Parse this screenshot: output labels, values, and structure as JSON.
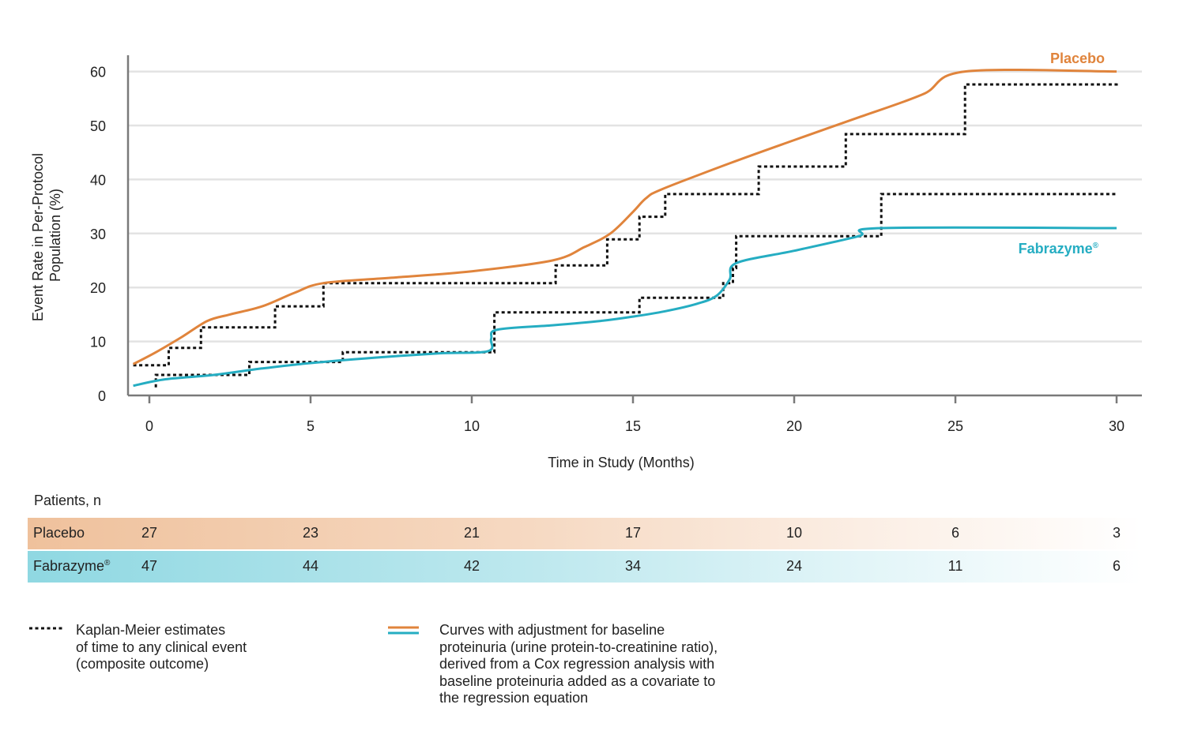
{
  "chart_data": {
    "type": "line",
    "xlabel": "Time in Study (Months)",
    "ylabel_lines": [
      "Event Rate in Per-Protocol",
      "Population (%)"
    ],
    "xlim": [
      -0.6,
      30.9
    ],
    "ylim": [
      0,
      63
    ],
    "x_ticks": [
      0,
      5,
      10,
      15,
      20,
      25,
      30
    ],
    "y_ticks": [
      0,
      10,
      20,
      30,
      40,
      50,
      60
    ],
    "grid": true,
    "series": [
      {
        "name": "Placebo",
        "style": "solid",
        "color": "#e0843c",
        "points": [
          [
            -0.5,
            5.8
          ],
          [
            0.2,
            8.0
          ],
          [
            1.0,
            10.8
          ],
          [
            1.8,
            13.8
          ],
          [
            2.5,
            15.0
          ],
          [
            3.5,
            16.5
          ],
          [
            4.5,
            19.0
          ],
          [
            5.4,
            20.8
          ],
          [
            7.5,
            21.8
          ],
          [
            10.0,
            23.0
          ],
          [
            12.5,
            25.0
          ],
          [
            13.5,
            27.5
          ],
          [
            14.3,
            30.0
          ],
          [
            15.0,
            34.0
          ],
          [
            15.4,
            36.5
          ],
          [
            15.9,
            38.2
          ],
          [
            18.0,
            43.0
          ],
          [
            20.0,
            47.3
          ],
          [
            22.0,
            51.5
          ],
          [
            24.0,
            55.8
          ],
          [
            25.3,
            60.0
          ],
          [
            30.0,
            60.0
          ]
        ]
      },
      {
        "name": "Fabrazyme®",
        "style": "solid",
        "color": "#25adc2",
        "points": [
          [
            -0.5,
            1.8
          ],
          [
            0.5,
            3.0
          ],
          [
            2.0,
            3.8
          ],
          [
            3.5,
            5.0
          ],
          [
            5.0,
            6.0
          ],
          [
            7.0,
            7.0
          ],
          [
            9.0,
            7.8
          ],
          [
            10.5,
            8.2
          ],
          [
            10.6,
            10.5
          ],
          [
            10.8,
            12.2
          ],
          [
            12.5,
            13.0
          ],
          [
            14.0,
            13.8
          ],
          [
            15.0,
            14.6
          ],
          [
            16.0,
            15.6
          ],
          [
            17.0,
            17.0
          ],
          [
            17.6,
            18.5
          ],
          [
            18.0,
            21.5
          ],
          [
            18.2,
            24.5
          ],
          [
            20.0,
            26.8
          ],
          [
            22.0,
            29.5
          ],
          [
            22.7,
            31.0
          ],
          [
            30.0,
            31.0
          ]
        ]
      },
      {
        "name": "Placebo Kaplan-Meier",
        "style": "dashed",
        "color": "#111111",
        "steps": [
          [
            -0.5,
            5.6
          ],
          [
            0.6,
            8.8
          ],
          [
            1.6,
            12.6
          ],
          [
            3.9,
            16.5
          ],
          [
            5.4,
            20.8
          ],
          [
            12.6,
            24.1
          ],
          [
            14.2,
            28.9
          ],
          [
            15.2,
            33.1
          ],
          [
            16.0,
            37.3
          ],
          [
            18.9,
            42.4
          ],
          [
            21.6,
            48.4
          ],
          [
            25.3,
            57.6
          ],
          [
            30.0,
            57.8
          ]
        ]
      },
      {
        "name": "Fabrazyme Kaplan-Meier",
        "style": "dashed",
        "color": "#111111",
        "steps": [
          [
            0.2,
            1.5
          ],
          [
            0.2,
            3.8
          ],
          [
            3.1,
            6.2
          ],
          [
            6.0,
            8.0
          ],
          [
            10.7,
            15.4
          ],
          [
            15.2,
            18.1
          ],
          [
            17.8,
            20.8
          ],
          [
            18.1,
            23.6
          ],
          [
            18.2,
            29.5
          ],
          [
            22.7,
            37.3
          ],
          [
            30.0,
            37.3
          ]
        ]
      }
    ]
  },
  "labels": {
    "placebo": "Placebo",
    "fabrazyme": "Fabrazyme",
    "reg": "®"
  },
  "risk_table": {
    "title": "Patients, n",
    "time_points": [
      0,
      5,
      10,
      15,
      20,
      25,
      30
    ],
    "rows": [
      {
        "label": "Placebo",
        "values": [
          "27",
          "23",
          "21",
          "17",
          "10",
          "6",
          "3"
        ]
      },
      {
        "label": "Fabrazyme",
        "label_sup": "®",
        "values": [
          "47",
          "44",
          "42",
          "34",
          "24",
          "11",
          "6"
        ]
      }
    ]
  },
  "legend": {
    "km_text_lines": [
      "Kaplan-Meier estimates",
      "of time to any clinical event",
      "(composite outcome)"
    ],
    "curve_text_lines": [
      "Curves with adjustment for baseline",
      "proteinuria (urine protein-to-creatinine ratio),",
      "derived from a Cox regression analysis with",
      "baseline proteinuria added as a covariate to",
      "the regression equation"
    ]
  },
  "colors": {
    "placebo": "#e0843c",
    "fabrazyme": "#25adc2",
    "km": "#111111",
    "grid": "#e3e3e3",
    "axis": "#7a7a7a"
  }
}
